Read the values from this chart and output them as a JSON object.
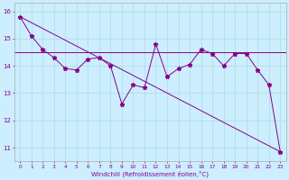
{
  "x": [
    0,
    1,
    2,
    3,
    4,
    5,
    6,
    7,
    8,
    9,
    10,
    11,
    12,
    13,
    14,
    15,
    16,
    17,
    18,
    19,
    20,
    21,
    22,
    23
  ],
  "y_line": [
    15.8,
    15.1,
    14.6,
    14.3,
    13.9,
    13.85,
    14.25,
    14.3,
    14.0,
    12.6,
    13.3,
    13.2,
    14.8,
    13.6,
    13.9,
    14.05,
    14.6,
    14.45,
    14.0,
    14.45,
    14.45,
    13.85,
    13.3,
    10.85
  ],
  "y_trend_start": 15.8,
  "y_trend_end": 10.85,
  "y_hline": 14.5,
  "line_color": "#880088",
  "bg_color": "#cceeff",
  "grid_color": "#aadddd",
  "xlabel": "Windchill (Refroidissement éolien,°C)",
  "ylim": [
    10.5,
    16.3
  ],
  "xlim": [
    -0.5,
    23.5
  ],
  "yticks": [
    11,
    12,
    13,
    14,
    15,
    16
  ],
  "xticks": [
    0,
    1,
    2,
    3,
    4,
    5,
    6,
    7,
    8,
    9,
    10,
    11,
    12,
    13,
    14,
    15,
    16,
    17,
    18,
    19,
    20,
    21,
    22,
    23
  ]
}
